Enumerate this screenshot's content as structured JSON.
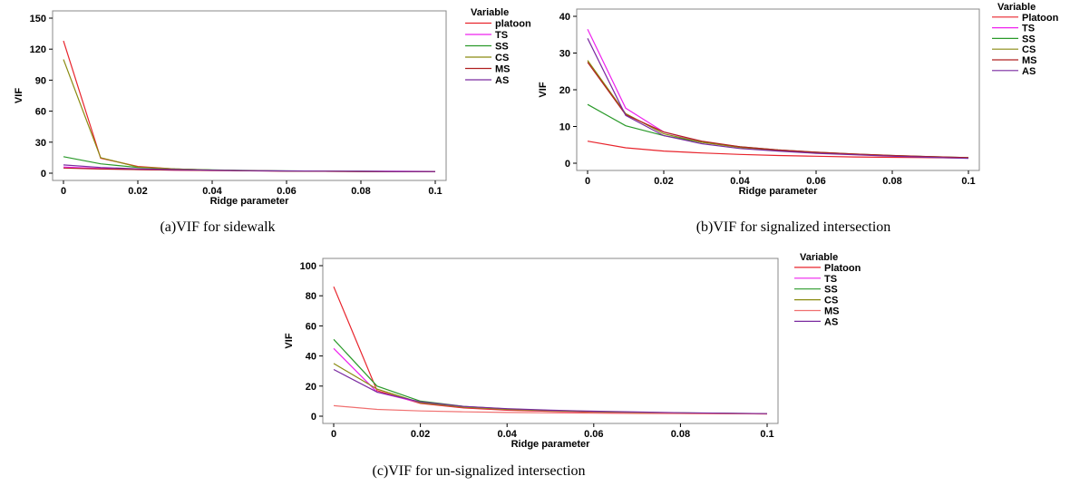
{
  "chart_data": [
    {
      "type": "line",
      "caption": "(a)VIF for sidewalk",
      "xlabel": "Ridge parameter",
      "ylabel": "VIF",
      "xlim": [
        0,
        0.1
      ],
      "ylim": [
        0,
        150
      ],
      "xticks": [
        "0",
        "0.02",
        "0.04",
        "0.06",
        "0.08",
        "0.1"
      ],
      "yticks": [
        "0",
        "30",
        "60",
        "90",
        "120",
        "150"
      ],
      "legend_title": "Variable",
      "x": [
        0,
        0.01,
        0.02,
        0.03,
        0.04,
        0.05,
        0.06,
        0.07,
        0.08,
        0.09,
        0.1
      ],
      "series": [
        {
          "name": "platoon",
          "color": "#e8242c",
          "values": [
            128,
            14.5,
            6.5,
            4,
            3,
            2.5,
            2,
            1.8,
            1.6,
            1.5,
            1.4
          ]
        },
        {
          "name": "TS",
          "color": "#ee22ee",
          "values": [
            6,
            4.5,
            3.5,
            3,
            2.6,
            2.3,
            2.1,
            2,
            1.9,
            1.8,
            1.7
          ]
        },
        {
          "name": "SS",
          "color": "#2a9a2a",
          "values": [
            16,
            9,
            5.5,
            4,
            3.2,
            2.6,
            2.2,
            2,
            1.8,
            1.6,
            1.5
          ]
        },
        {
          "name": "CS",
          "color": "#8a8a10",
          "values": [
            110,
            15,
            6,
            4,
            3,
            2.4,
            2,
            1.8,
            1.6,
            1.5,
            1.4
          ]
        },
        {
          "name": "MS",
          "color": "#b02020",
          "values": [
            5,
            4,
            3.5,
            3,
            2.6,
            2.3,
            2,
            1.8,
            1.6,
            1.5,
            1.4
          ]
        },
        {
          "name": "AS",
          "color": "#7a2aa0",
          "values": [
            8,
            5.5,
            4.2,
            3.5,
            2.9,
            2.5,
            2.2,
            2,
            1.8,
            1.7,
            1.6
          ]
        }
      ]
    },
    {
      "type": "line",
      "caption": "(b)VIF for signalized intersection",
      "xlabel": "Ridge parameter",
      "ylabel": "VIF",
      "xlim": [
        0,
        0.1
      ],
      "ylim": [
        0,
        40
      ],
      "xticks": [
        "0",
        "0.02",
        "0.04",
        "0.06",
        "0.08",
        "0.1"
      ],
      "yticks": [
        "0",
        "10",
        "20",
        "30",
        "40"
      ],
      "legend_title": "Variable",
      "x": [
        0,
        0.01,
        0.02,
        0.03,
        0.04,
        0.05,
        0.06,
        0.07,
        0.08,
        0.09,
        0.1
      ],
      "series": [
        {
          "name": "Platoon",
          "color": "#e8242c",
          "values": [
            6,
            4.2,
            3.3,
            2.8,
            2.4,
            2.1,
            1.9,
            1.7,
            1.6,
            1.5,
            1.4
          ]
        },
        {
          "name": "TS",
          "color": "#ee22ee",
          "values": [
            36.5,
            15,
            8.5,
            5.8,
            4.4,
            3.5,
            2.9,
            2.4,
            2,
            1.7,
            1.4
          ]
        },
        {
          "name": "SS",
          "color": "#2a9a2a",
          "values": [
            16,
            10.2,
            7.5,
            5.7,
            4.5,
            3.6,
            3,
            2.5,
            2.1,
            1.8,
            1.5
          ]
        },
        {
          "name": "CS",
          "color": "#8a8a10",
          "values": [
            28,
            13.5,
            8,
            5.7,
            4.3,
            3.5,
            2.9,
            2.4,
            2,
            1.7,
            1.4
          ]
        },
        {
          "name": "MS",
          "color": "#b02020",
          "values": [
            27.5,
            13.2,
            8.5,
            6,
            4.5,
            3.6,
            3,
            2.5,
            2.1,
            1.8,
            1.5
          ]
        },
        {
          "name": "AS",
          "color": "#7a2aa0",
          "values": [
            34,
            13,
            7.5,
            5.3,
            4,
            3.3,
            2.7,
            2.3,
            1.9,
            1.6,
            1.3
          ]
        }
      ]
    },
    {
      "type": "line",
      "caption": "(c)VIF for un-signalized intersection",
      "xlabel": "Ridge parameter",
      "ylabel": "VIF",
      "xlim": [
        0,
        0.1
      ],
      "ylim": [
        0,
        100
      ],
      "xticks": [
        "0",
        "0.02",
        "0.04",
        "0.06",
        "0.08",
        "0.1"
      ],
      "yticks": [
        "0",
        "20",
        "40",
        "60",
        "80",
        "100"
      ],
      "legend_title": "Variable",
      "x": [
        0,
        0.01,
        0.02,
        0.03,
        0.04,
        0.05,
        0.06,
        0.07,
        0.08,
        0.09,
        0.1
      ],
      "series": [
        {
          "name": "Platoon",
          "color": "#e8242c",
          "values": [
            86,
            17,
            8.5,
            5.5,
            4,
            3.2,
            2.6,
            2.2,
            1.9,
            1.7,
            1.5
          ]
        },
        {
          "name": "TS",
          "color": "#ee22ee",
          "values": [
            45,
            16,
            9,
            6,
            4.5,
            3.5,
            2.9,
            2.4,
            2,
            1.8,
            1.6
          ]
        },
        {
          "name": "SS",
          "color": "#2a9a2a",
          "values": [
            51,
            20,
            10,
            6.5,
            4.8,
            3.8,
            3.1,
            2.6,
            2.2,
            1.9,
            1.7
          ]
        },
        {
          "name": "CS",
          "color": "#8a8a10",
          "values": [
            35,
            18,
            9,
            6,
            4.5,
            3.6,
            3,
            2.5,
            2.1,
            1.8,
            1.6
          ]
        },
        {
          "name": "MS",
          "color": "#f07070",
          "values": [
            7,
            4.5,
            3.5,
            2.9,
            2.5,
            2.2,
            2,
            1.8,
            1.7,
            1.6,
            1.5
          ]
        },
        {
          "name": "AS",
          "color": "#7a2aa0",
          "values": [
            31,
            16,
            9.5,
            6.5,
            5,
            4,
            3.3,
            2.8,
            2.3,
            2,
            1.7
          ]
        }
      ]
    }
  ]
}
